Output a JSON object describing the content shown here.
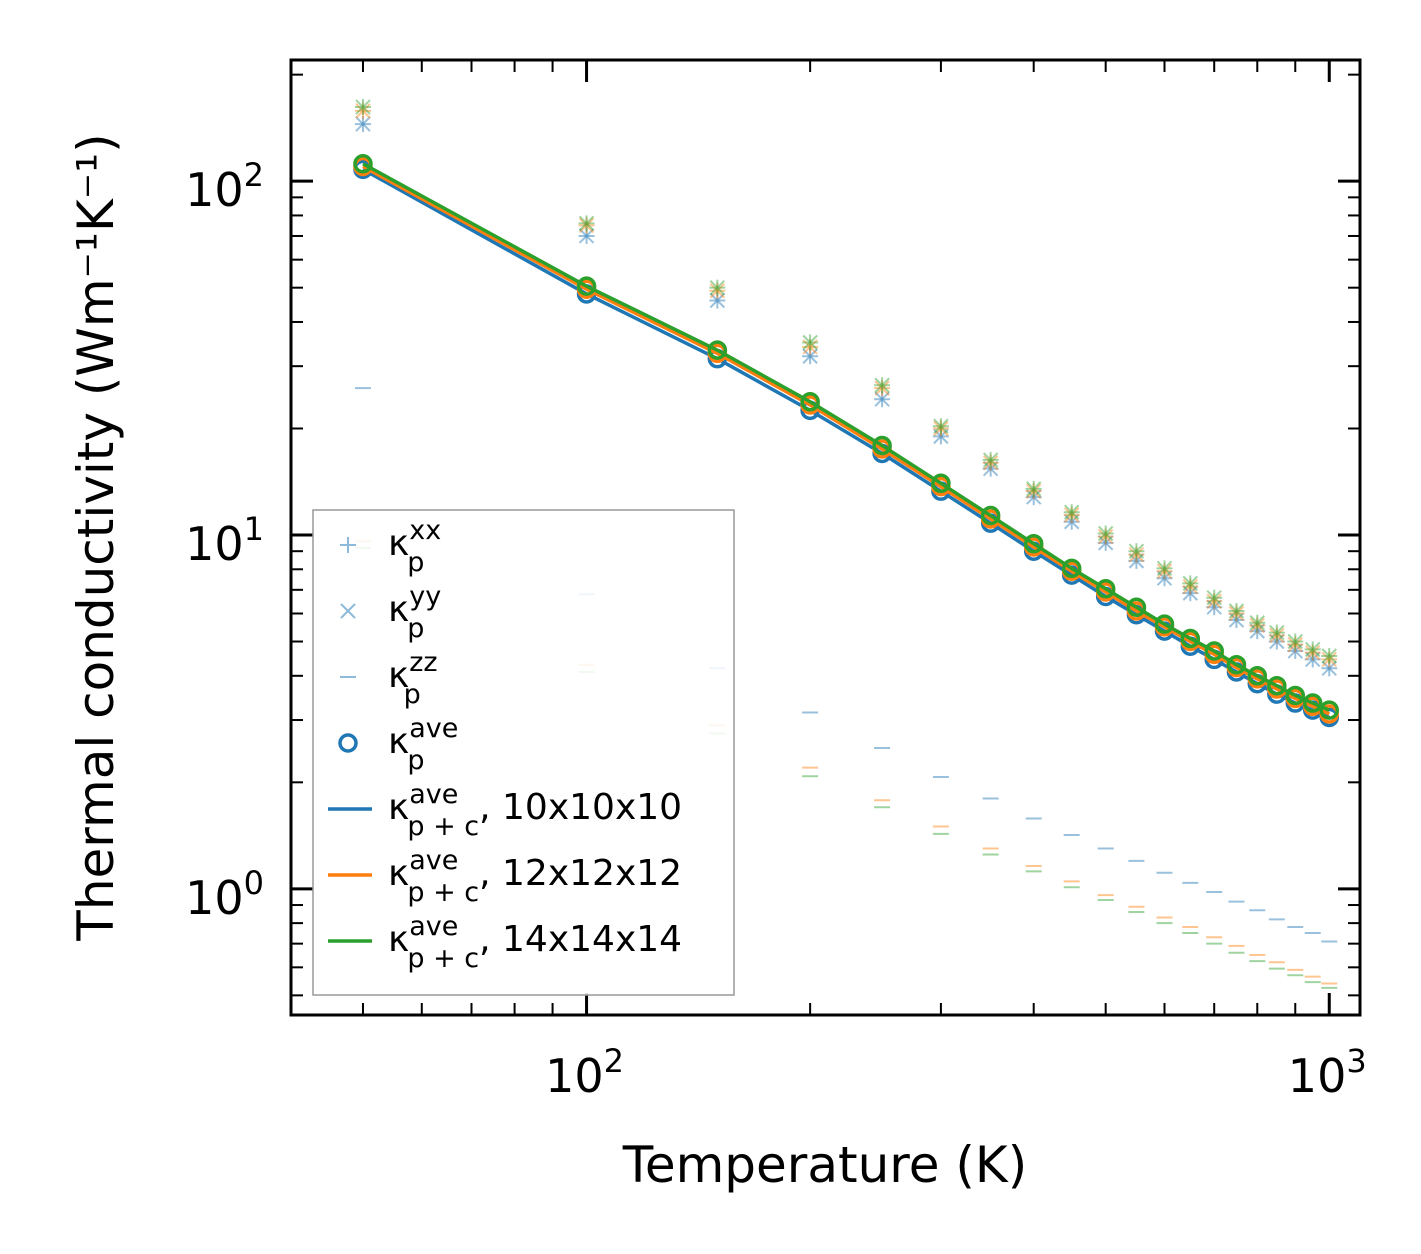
{
  "chart_data": {
    "type": "scatter",
    "xlabel": "Temperature (K)",
    "ylabel": "Thermal conductivity (Wm⁻¹K⁻¹)",
    "xscale": "log",
    "yscale": "log",
    "xlim": [
      40,
      1100
    ],
    "ylim": [
      0.44,
      220
    ],
    "x_ticks": [
      {
        "value": 100,
        "base": "10",
        "exp": "2"
      },
      {
        "value": 1000,
        "base": "10",
        "exp": "3"
      }
    ],
    "y_ticks": [
      {
        "value": 1,
        "base": "10",
        "exp": "0"
      },
      {
        "value": 10,
        "base": "10",
        "exp": "1"
      },
      {
        "value": 100,
        "base": "10",
        "exp": "2"
      }
    ],
    "legend_position": "lower-left",
    "colors": {
      "blue": "#1f77b4",
      "orange": "#ff7f0e",
      "green": "#2ca02c"
    },
    "temperatures": [
      50,
      100,
      150,
      200,
      250,
      300,
      350,
      400,
      450,
      500,
      550,
      600,
      650,
      700,
      750,
      800,
      850,
      900,
      950,
      1000
    ],
    "series": [
      {
        "name": "10x10x10",
        "color": "#1f77b4",
        "kxx": [
          145,
          70,
          46,
          32,
          24.2,
          19,
          15.4,
          12.8,
          10.9,
          9.5,
          8.45,
          7.55,
          6.85,
          6.25,
          5.75,
          5.35,
          5.0,
          4.7,
          4.45,
          4.2
        ],
        "kyy": [
          145,
          70,
          46,
          32,
          24.2,
          19,
          15.4,
          12.8,
          10.9,
          9.5,
          8.45,
          7.55,
          6.85,
          6.25,
          5.75,
          5.35,
          5.0,
          4.7,
          4.45,
          4.2
        ],
        "kzz": [
          26,
          6.8,
          4.2,
          3.15,
          2.5,
          2.07,
          1.8,
          1.58,
          1.42,
          1.3,
          1.2,
          1.11,
          1.04,
          0.98,
          0.92,
          0.87,
          0.82,
          0.78,
          0.75,
          0.71
        ],
        "kave": [
          108,
          48,
          31.5,
          22.5,
          17.0,
          13.3,
          10.8,
          9.0,
          7.7,
          6.7,
          5.95,
          5.35,
          4.85,
          4.45,
          4.1,
          3.8,
          3.55,
          3.35,
          3.2,
          3.05
        ],
        "kpc": [
          108,
          48,
          31.5,
          22.5,
          17.0,
          13.3,
          10.8,
          9.0,
          7.7,
          6.7,
          5.95,
          5.35,
          4.85,
          4.45,
          4.1,
          3.8,
          3.55,
          3.35,
          3.2,
          3.05
        ]
      },
      {
        "name": "12x12x12",
        "color": "#ff7f0e",
        "kxx": [
          158,
          75,
          49,
          34,
          26,
          20,
          16,
          13.3,
          11.4,
          9.9,
          8.8,
          7.9,
          7.15,
          6.5,
          6.0,
          5.55,
          5.2,
          4.9,
          4.65,
          4.45
        ],
        "kyy": [
          158,
          75,
          49,
          34,
          26,
          20,
          16,
          13.3,
          11.4,
          9.9,
          8.8,
          7.9,
          7.15,
          6.5,
          6.0,
          5.55,
          5.2,
          4.9,
          4.65,
          4.45
        ],
        "kzz": [
          9.6,
          4.3,
          2.9,
          2.2,
          1.78,
          1.5,
          1.3,
          1.16,
          1.05,
          0.96,
          0.89,
          0.83,
          0.78,
          0.73,
          0.69,
          0.65,
          0.62,
          0.59,
          0.565,
          0.54
        ],
        "kave": [
          110,
          49.5,
          32.6,
          23.3,
          17.5,
          13.7,
          11.1,
          9.25,
          7.9,
          6.9,
          6.1,
          5.5,
          5.0,
          4.6,
          4.22,
          3.92,
          3.67,
          3.45,
          3.28,
          3.12
        ],
        "kpc": [
          110,
          49.5,
          32.6,
          23.3,
          17.5,
          13.7,
          11.1,
          9.25,
          7.9,
          6.9,
          6.1,
          5.5,
          5.0,
          4.6,
          4.22,
          3.92,
          3.67,
          3.45,
          3.28,
          3.12
        ]
      },
      {
        "name": "14x14x14",
        "color": "#2ca02c",
        "kxx": [
          162,
          76,
          50,
          35,
          26.5,
          20.3,
          16.3,
          13.5,
          11.6,
          10.1,
          9.0,
          8.05,
          7.3,
          6.65,
          6.1,
          5.65,
          5.3,
          5.0,
          4.75,
          4.55
        ],
        "kyy": [
          162,
          76,
          50,
          35,
          26.5,
          20.3,
          16.3,
          13.5,
          11.6,
          10.1,
          9.0,
          8.05,
          7.3,
          6.65,
          6.1,
          5.65,
          5.3,
          5.0,
          4.75,
          4.55
        ],
        "kzz": [
          9.2,
          4.1,
          2.75,
          2.08,
          1.7,
          1.43,
          1.25,
          1.12,
          1.01,
          0.93,
          0.86,
          0.8,
          0.75,
          0.7,
          0.66,
          0.625,
          0.595,
          0.57,
          0.545,
          0.525
        ],
        "kave": [
          112,
          50.5,
          33.3,
          23.8,
          17.9,
          14.0,
          11.35,
          9.45,
          8.05,
          7.05,
          6.25,
          5.6,
          5.1,
          4.7,
          4.3,
          4.0,
          3.75,
          3.52,
          3.35,
          3.2
        ],
        "kpc": [
          112,
          50.5,
          33.3,
          23.8,
          17.9,
          14.0,
          11.35,
          9.45,
          8.05,
          7.05,
          6.25,
          5.6,
          5.1,
          4.7,
          4.3,
          4.0,
          3.75,
          3.52,
          3.35,
          3.2
        ]
      }
    ],
    "legend": [
      {
        "key": "kxx",
        "marker": "plus",
        "color": "#1f77b4",
        "alpha": 0.5,
        "base": "κ",
        "sup": "xx",
        "sub": "p",
        "suffix": ""
      },
      {
        "key": "kyy",
        "marker": "x",
        "color": "#1f77b4",
        "alpha": 0.5,
        "base": "κ",
        "sup": "yy",
        "sub": "p",
        "suffix": ""
      },
      {
        "key": "kzz",
        "marker": "dash",
        "color": "#1f77b4",
        "alpha": 0.5,
        "base": "κ",
        "sup": "zz",
        "sub": "p",
        "suffix": ""
      },
      {
        "key": "kave",
        "marker": "circle",
        "color": "#1f77b4",
        "alpha": 1,
        "base": "κ",
        "sup": "ave",
        "sub": "p",
        "suffix": ""
      },
      {
        "key": "kpc1",
        "marker": "line",
        "color": "#1f77b4",
        "alpha": 1,
        "base": "κ",
        "sup": "ave",
        "sub": "p + c",
        "suffix": ", 10x10x10"
      },
      {
        "key": "kpc2",
        "marker": "line",
        "color": "#ff7f0e",
        "alpha": 1,
        "base": "κ",
        "sup": "ave",
        "sub": "p + c",
        "suffix": ", 12x12x12"
      },
      {
        "key": "kpc3",
        "marker": "line",
        "color": "#2ca02c",
        "alpha": 1,
        "base": "κ",
        "sup": "ave",
        "sub": "p + c",
        "suffix": ", 14x14x14"
      }
    ]
  }
}
